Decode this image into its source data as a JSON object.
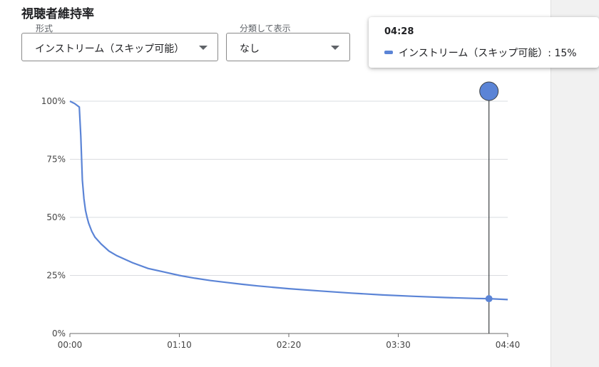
{
  "title": "視聴者維持率",
  "filters": {
    "format": {
      "label": "形式",
      "value": "インストリーム（スキップ可能）"
    },
    "breakdown": {
      "label": "分類して表示",
      "value": "なし"
    }
  },
  "tooltip": {
    "time": "04:28",
    "series_label": "インストリーム（スキップ可能）: 15%",
    "swatch_color": "#5b84d6"
  },
  "chart_data": {
    "type": "line",
    "x_unit": "seconds",
    "xlim": [
      0,
      280
    ],
    "ylim": [
      0,
      100
    ],
    "x_ticks": [
      {
        "value": 0,
        "label": "00:00"
      },
      {
        "value": 70,
        "label": "01:10"
      },
      {
        "value": 140,
        "label": "02:20"
      },
      {
        "value": 210,
        "label": "03:30"
      },
      {
        "value": 280,
        "label": "04:40"
      }
    ],
    "y_ticks": [
      {
        "value": 0,
        "label": "0%"
      },
      {
        "value": 25,
        "label": "25%"
      },
      {
        "value": 50,
        "label": "50%"
      },
      {
        "value": 75,
        "label": "75%"
      },
      {
        "value": 100,
        "label": "100%"
      }
    ],
    "grid": true,
    "series": [
      {
        "name": "インストリーム（スキップ可能）",
        "color": "#5b84d6",
        "points": [
          [
            0,
            100
          ],
          [
            3,
            99
          ],
          [
            6,
            97.5
          ],
          [
            7,
            85
          ],
          [
            8,
            66
          ],
          [
            9,
            58
          ],
          [
            10,
            53
          ],
          [
            11,
            50
          ],
          [
            12,
            47.5
          ],
          [
            14,
            44
          ],
          [
            16,
            41.5
          ],
          [
            20,
            38.5
          ],
          [
            25,
            35.5
          ],
          [
            30,
            33.5
          ],
          [
            40,
            30.5
          ],
          [
            50,
            28
          ],
          [
            60,
            26.5
          ],
          [
            70,
            25
          ],
          [
            80,
            23.8
          ],
          [
            90,
            22.8
          ],
          [
            100,
            22
          ],
          [
            110,
            21.2
          ],
          [
            120,
            20.5
          ],
          [
            140,
            19.3
          ],
          [
            160,
            18.3
          ],
          [
            180,
            17.4
          ],
          [
            200,
            16.6
          ],
          [
            220,
            16
          ],
          [
            240,
            15.5
          ],
          [
            260,
            15.1
          ],
          [
            268,
            15
          ],
          [
            280,
            14.6
          ]
        ]
      }
    ],
    "cursor": {
      "x": 268,
      "y": 15
    }
  }
}
